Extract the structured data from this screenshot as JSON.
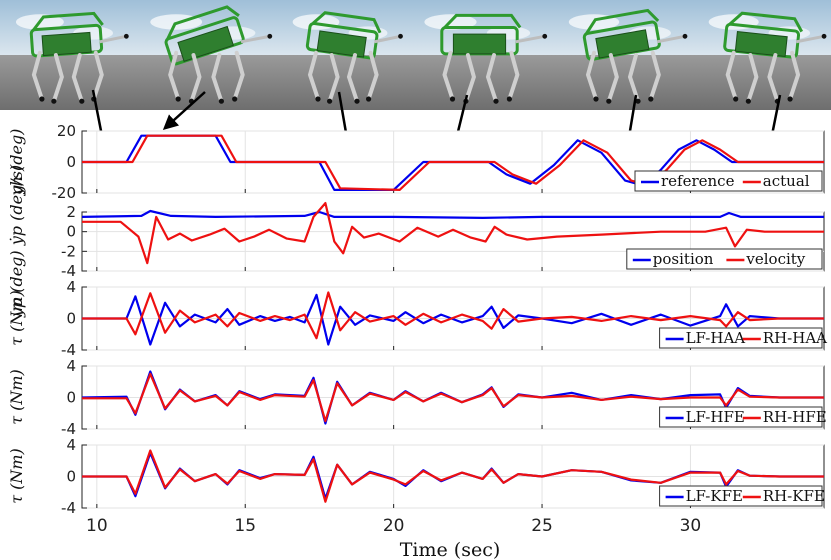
{
  "figure": {
    "xlabel": "Time (sec)",
    "xticks": [
      10,
      15,
      20,
      25,
      30
    ],
    "xlim": [
      9.5,
      34.5
    ]
  },
  "snapshots": [
    {
      "arrow_target_time": 10.3
    },
    {
      "arrow_target_time": 12.3
    },
    {
      "arrow_target_time": 18.6
    },
    {
      "arrow_target_time": 22.0
    },
    {
      "arrow_target_time": 27.8
    },
    {
      "arrow_target_time": 32.6
    }
  ],
  "colors": {
    "blue": "#0000ee",
    "red": "#ee1111",
    "robot_green": "#2e9a2e",
    "sky": "#b8cfe0",
    "ground": "#7a7a7a"
  },
  "chart_data": [
    {
      "type": "line",
      "ylabel": "yh (deg)",
      "ylim": [
        -20,
        20
      ],
      "yticks": [
        -20,
        0,
        20
      ],
      "grid": true,
      "legend": "bottom-right",
      "series": [
        {
          "name": "reference",
          "color": "#0000ee",
          "x": [
            9.5,
            11.0,
            11.5,
            14.0,
            14.5,
            17.5,
            18.0,
            20.0,
            21.0,
            22.5,
            23.2,
            23.8,
            24.6,
            25.4,
            26.2,
            27.0,
            27.8,
            28.4,
            29.0,
            29.6,
            30.2,
            30.8,
            31.4,
            32.2,
            34.5
          ],
          "y": [
            0,
            0,
            17,
            17,
            0,
            0,
            -18,
            -18,
            0,
            0,
            0,
            -8,
            -14,
            -2,
            14,
            6,
            -12,
            -15,
            -5,
            8,
            14,
            8,
            0,
            0,
            0
          ]
        },
        {
          "name": "actual",
          "color": "#ee1111",
          "x": [
            9.5,
            11.2,
            11.7,
            14.2,
            14.7,
            17.7,
            18.2,
            20.2,
            21.2,
            22.7,
            23.4,
            24.0,
            24.8,
            25.6,
            26.4,
            27.2,
            28.0,
            28.6,
            29.2,
            29.8,
            30.4,
            31.0,
            31.6,
            32.4,
            34.5
          ],
          "y": [
            0,
            0,
            17,
            17,
            0,
            0,
            -17,
            -18,
            0,
            0,
            0,
            -8,
            -14,
            -2,
            14,
            6,
            -12,
            -15,
            -5,
            8,
            14,
            8,
            0,
            0,
            0
          ]
        }
      ]
    },
    {
      "type": "line",
      "ylabel": "yp (deg) ẏp (deg/s)",
      "ylim": [
        -4,
        2
      ],
      "yticks": [
        -4,
        -2,
        0,
        2
      ],
      "grid": true,
      "legend": "bottom-right",
      "series": [
        {
          "name": "position",
          "color": "#0000ee",
          "x": [
            9.5,
            11.5,
            11.8,
            12.5,
            14.0,
            17.0,
            17.5,
            18.0,
            20.0,
            23.0,
            25.0,
            28.0,
            31.0,
            31.3,
            31.7,
            34.5
          ],
          "y": [
            1.5,
            1.6,
            2.1,
            1.6,
            1.5,
            1.6,
            2.0,
            1.5,
            1.5,
            1.4,
            1.5,
            1.5,
            1.5,
            1.9,
            1.5,
            1.5
          ]
        },
        {
          "name": "velocity",
          "color": "#ee1111",
          "x": [
            9.5,
            10.8,
            11.4,
            11.7,
            12.0,
            12.4,
            12.8,
            13.2,
            13.8,
            14.3,
            14.8,
            15.3,
            15.8,
            16.4,
            17.0,
            17.3,
            17.7,
            18.0,
            18.3,
            18.6,
            19.0,
            19.5,
            20.2,
            20.8,
            21.5,
            22.0,
            22.6,
            23.1,
            23.4,
            23.8,
            24.5,
            25.5,
            27.0,
            29.0,
            30.5,
            31.2,
            31.5,
            31.9,
            32.5,
            33.5,
            34.5
          ],
          "y": [
            1.0,
            1.0,
            -0.5,
            -3.2,
            1.5,
            -0.8,
            -0.2,
            -0.9,
            -0.3,
            0.3,
            -1.0,
            -0.5,
            0.2,
            -0.7,
            -1.0,
            1.5,
            2.9,
            -1.0,
            -2.2,
            0.5,
            -0.6,
            -0.2,
            -1.0,
            0.4,
            -0.5,
            0.2,
            -0.6,
            -1.0,
            0.5,
            -0.3,
            -0.8,
            -0.5,
            -0.3,
            0.0,
            0.0,
            0.4,
            -1.5,
            0.2,
            0.0,
            0.0,
            0.0
          ]
        }
      ]
    },
    {
      "type": "line",
      "ylabel": "τ (Nm)",
      "ylim": [
        -4,
        4
      ],
      "yticks": [
        -4,
        0,
        4
      ],
      "grid": true,
      "legend": "bottom-right",
      "series": [
        {
          "name": "LF-HAA",
          "color": "#0000ee",
          "x": [
            9.5,
            11.0,
            11.3,
            11.8,
            12.3,
            12.8,
            13.3,
            14.0,
            14.4,
            14.8,
            15.5,
            16.0,
            16.5,
            17.0,
            17.4,
            17.8,
            18.2,
            18.7,
            19.2,
            20.0,
            20.4,
            21.0,
            21.6,
            22.3,
            23.0,
            23.3,
            23.7,
            24.2,
            25.0,
            26.0,
            27.0,
            28.0,
            29.0,
            30.0,
            31.0,
            31.2,
            31.6,
            32.0,
            33.0,
            34.5
          ],
          "y": [
            0,
            0,
            2.8,
            -3.3,
            2.0,
            -1.0,
            0.5,
            -0.5,
            1.2,
            -0.8,
            0.3,
            -0.3,
            0.2,
            -0.5,
            3.0,
            -3.3,
            1.5,
            -0.8,
            0.4,
            -0.3,
            0.8,
            -0.6,
            0.5,
            -0.5,
            0.3,
            1.5,
            -1.2,
            0.4,
            0,
            -0.6,
            0.6,
            -0.8,
            0.5,
            -0.9,
            0.3,
            1.8,
            -1.0,
            0.3,
            0,
            0
          ]
        },
        {
          "name": "RH-HAA",
          "color": "#ee1111",
          "x": [
            9.5,
            11.0,
            11.3,
            11.8,
            12.3,
            12.8,
            13.3,
            14.0,
            14.4,
            14.8,
            15.5,
            16.0,
            16.5,
            17.0,
            17.4,
            17.8,
            18.2,
            18.7,
            19.2,
            20.0,
            20.4,
            21.0,
            21.6,
            22.3,
            23.0,
            23.3,
            23.7,
            24.2,
            25.0,
            26.0,
            27.0,
            28.0,
            29.0,
            30.0,
            31.0,
            31.2,
            31.6,
            32.0,
            33.0,
            34.5
          ],
          "y": [
            0,
            0,
            -2.0,
            3.2,
            -1.8,
            1.0,
            -0.5,
            0.5,
            -1.0,
            0.7,
            -0.3,
            0.3,
            -0.2,
            0.5,
            -2.5,
            3.3,
            -1.5,
            0.8,
            -0.4,
            0.3,
            -0.8,
            0.6,
            -0.5,
            0.5,
            -0.3,
            -1.3,
            1.2,
            -0.4,
            0,
            0.2,
            -0.3,
            0.3,
            -0.2,
            0.3,
            -0.2,
            -1.0,
            0.8,
            -0.2,
            0,
            0
          ]
        }
      ]
    },
    {
      "type": "line",
      "ylabel": "τ (Nm)",
      "ylim": [
        -4,
        4
      ],
      "yticks": [
        -4,
        0,
        4
      ],
      "grid": true,
      "legend": "bottom-right",
      "series": [
        {
          "name": "LF-HFE",
          "color": "#0000ee",
          "x": [
            9.5,
            11.0,
            11.3,
            11.8,
            12.3,
            12.8,
            13.3,
            14.0,
            14.4,
            14.8,
            15.5,
            16.0,
            17.0,
            17.3,
            17.7,
            18.1,
            18.6,
            19.2,
            20.0,
            20.4,
            21.0,
            21.6,
            22.3,
            23.0,
            23.3,
            23.7,
            24.2,
            25.0,
            26.0,
            27.0,
            28.0,
            29.0,
            30.0,
            31.0,
            31.2,
            31.6,
            32.0,
            33.0,
            34.5
          ],
          "y": [
            0,
            0.1,
            -2.2,
            3.3,
            -1.5,
            1.0,
            -0.5,
            0.3,
            -1.0,
            0.8,
            -0.2,
            0.4,
            0.2,
            2.5,
            -3.3,
            2.0,
            -1.0,
            0.6,
            -0.3,
            0.8,
            -0.5,
            0.6,
            -0.6,
            0.4,
            1.3,
            -1.2,
            0.4,
            0,
            0.6,
            -0.3,
            0.3,
            -0.2,
            0.3,
            0.4,
            -1.3,
            1.2,
            0.2,
            0,
            0
          ]
        },
        {
          "name": "RH-HFE",
          "color": "#ee1111",
          "x": [
            9.5,
            11.0,
            11.3,
            11.8,
            12.3,
            12.8,
            13.3,
            14.0,
            14.4,
            14.8,
            15.5,
            16.0,
            17.0,
            17.3,
            17.7,
            18.1,
            18.6,
            19.2,
            20.0,
            20.4,
            21.0,
            21.6,
            22.3,
            23.0,
            23.3,
            23.7,
            24.2,
            25.0,
            26.0,
            27.0,
            28.0,
            29.0,
            30.0,
            31.0,
            31.2,
            31.6,
            32.0,
            33.0,
            34.5
          ],
          "y": [
            -0.1,
            -0.1,
            -2.0,
            3.0,
            -1.4,
            0.9,
            -0.5,
            0.2,
            -1.0,
            0.7,
            -0.3,
            0.3,
            0.1,
            2.2,
            -3.0,
            1.8,
            -1.0,
            0.5,
            -0.3,
            0.7,
            -0.5,
            0.5,
            -0.6,
            0.3,
            1.2,
            -1.1,
            0.3,
            0,
            0.2,
            -0.3,
            0.1,
            -0.2,
            0.0,
            0.0,
            -1.0,
            1.0,
            0.1,
            0,
            0
          ]
        }
      ]
    },
    {
      "type": "line",
      "ylabel": "τ (Nm)",
      "ylim": [
        -4,
        4
      ],
      "yticks": [
        -4,
        0,
        4
      ],
      "grid": true,
      "legend": "bottom-right",
      "series": [
        {
          "name": "LF-KFE",
          "color": "#0000ee",
          "x": [
            9.5,
            11.0,
            11.3,
            11.8,
            12.3,
            12.8,
            13.3,
            14.0,
            14.4,
            14.8,
            15.5,
            16.0,
            17.0,
            17.3,
            17.7,
            18.1,
            18.6,
            19.2,
            20.0,
            20.4,
            21.0,
            21.6,
            22.3,
            23.0,
            23.3,
            23.7,
            24.2,
            25.0,
            26.0,
            27.0,
            28.0,
            29.0,
            30.0,
            31.0,
            31.2,
            31.6,
            32.0,
            33.0,
            34.5
          ],
          "y": [
            0,
            0,
            -2.5,
            3.0,
            -1.5,
            1.0,
            -0.6,
            0.3,
            -1.0,
            0.8,
            -0.2,
            0.3,
            0.2,
            2.5,
            -2.8,
            1.5,
            -1.0,
            0.6,
            -0.3,
            -1.2,
            0.8,
            -0.6,
            0.5,
            -0.3,
            1.0,
            -0.8,
            0.3,
            0,
            0.8,
            0.6,
            -0.5,
            -0.8,
            0.6,
            0.5,
            -1.3,
            0.8,
            0.1,
            0,
            0
          ]
        },
        {
          "name": "RH-KFE",
          "color": "#ee1111",
          "x": [
            9.5,
            11.0,
            11.3,
            11.8,
            12.3,
            12.8,
            13.3,
            14.0,
            14.4,
            14.8,
            15.5,
            16.0,
            17.0,
            17.3,
            17.7,
            18.1,
            18.6,
            19.2,
            20.0,
            20.4,
            21.0,
            21.6,
            22.3,
            23.0,
            23.3,
            23.7,
            24.2,
            25.0,
            26.0,
            27.0,
            28.0,
            29.0,
            30.0,
            31.0,
            31.2,
            31.6,
            32.0,
            33.0,
            34.5
          ],
          "y": [
            0,
            0,
            -2.2,
            3.3,
            -1.4,
            0.9,
            -0.6,
            0.3,
            -0.9,
            0.7,
            -0.3,
            0.3,
            0.2,
            2.2,
            -3.2,
            1.5,
            -1.0,
            0.5,
            -0.4,
            -1.0,
            0.7,
            -0.5,
            0.5,
            -0.3,
            0.9,
            -0.8,
            0.3,
            0,
            0.8,
            0.6,
            -0.4,
            -0.8,
            0.5,
            0.5,
            -1.0,
            0.7,
            0.1,
            0,
            0
          ]
        }
      ]
    }
  ]
}
